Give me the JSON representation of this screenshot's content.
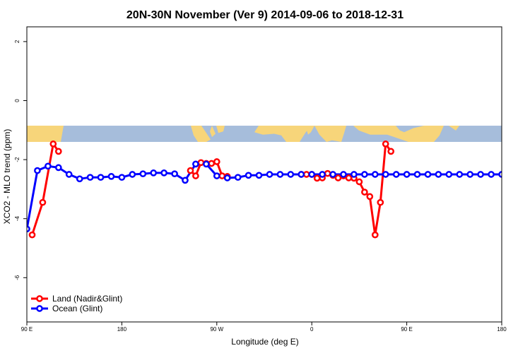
{
  "chart_data": {
    "type": "line",
    "title": "20N-30N November (Ver 9)   2014-09-06 to 2018-12-31",
    "xlabel": "Longitude (deg E)",
    "ylabel": "XCO2 - MLO trend (ppm)",
    "xlim": [
      90,
      540
    ],
    "ylim": [
      -7.5,
      2.5
    ],
    "x_ticks": [
      {
        "value": 90,
        "label": "90 E"
      },
      {
        "value": 180,
        "label": "180"
      },
      {
        "value": 270,
        "label": "90 W"
      },
      {
        "value": 360,
        "label": "0"
      },
      {
        "value": 450,
        "label": "90 E"
      },
      {
        "value": 540,
        "label": "180"
      }
    ],
    "y_ticks": [
      {
        "value": 2,
        "label": "2"
      },
      {
        "value": 0,
        "label": "0"
      },
      {
        "value": -2,
        "label": "-2"
      },
      {
        "value": -4,
        "label": "-4"
      },
      {
        "value": -6,
        "label": "-6"
      }
    ],
    "map_strip": {
      "y_top": -0.85,
      "y_bottom": -1.4,
      "ocean_color": "#a6bddb",
      "land_color": "#f7d57a"
    },
    "series": [
      {
        "name": "Land (Nadir&Glint)",
        "color": "#ff0000",
        "segments": [
          {
            "x": [
              95,
              105,
              115,
              120
            ],
            "y": [
              -4.55,
              -3.45,
              -1.47,
              -1.72
            ]
          },
          {
            "x": [
              245,
              250,
              255,
              260,
              265,
              270,
              275,
              280
            ],
            "y": [
              -2.37,
              -2.55,
              -2.1,
              -2.13,
              -2.13,
              -2.07,
              -2.55,
              -2.57
            ]
          },
          {
            "x": [
              350,
              355,
              360,
              365,
              370,
              375,
              380,
              385,
              390,
              395,
              400,
              405,
              410,
              415,
              420,
              425,
              430,
              435
            ],
            "y": [
              -2.5,
              -2.5,
              -2.5,
              -2.63,
              -2.62,
              -2.47,
              -2.53,
              -2.62,
              -2.55,
              -2.62,
              -2.63,
              -2.75,
              -3.1,
              -3.25,
              -4.55,
              -3.45,
              -1.47,
              -1.72
            ]
          }
        ]
      },
      {
        "name": "Ocean (Glint)",
        "color": "#0000ff",
        "segments": [
          {
            "x": [
              90,
              100,
              110,
              120,
              130,
              140,
              150,
              160,
              170,
              180,
              190,
              200,
              210,
              220,
              230,
              240,
              250,
              260,
              270,
              280,
              290,
              300,
              310,
              320,
              330,
              340,
              350,
              360,
              370,
              380,
              390,
              400,
              410,
              420,
              430,
              440,
              450,
              460,
              470,
              480,
              490,
              500,
              510,
              520,
              530,
              540
            ],
            "y": [
              -4.35,
              -2.37,
              -2.22,
              -2.27,
              -2.5,
              -2.65,
              -2.6,
              -2.6,
              -2.57,
              -2.6,
              -2.5,
              -2.48,
              -2.45,
              -2.45,
              -2.48,
              -2.7,
              -2.15,
              -2.15,
              -2.55,
              -2.62,
              -2.6,
              -2.53,
              -2.53,
              -2.5,
              -2.5,
              -2.5,
              -2.5,
              -2.5,
              -2.5,
              -2.5,
              -2.5,
              -2.5,
              -2.5,
              -2.5,
              -2.5,
              -2.5,
              -2.5,
              -2.5,
              -2.5,
              -2.5,
              -2.5,
              -2.5,
              -2.5,
              -2.5,
              -2.5,
              -2.5
            ]
          }
        ]
      }
    ],
    "legend_position": "bottom-left"
  }
}
